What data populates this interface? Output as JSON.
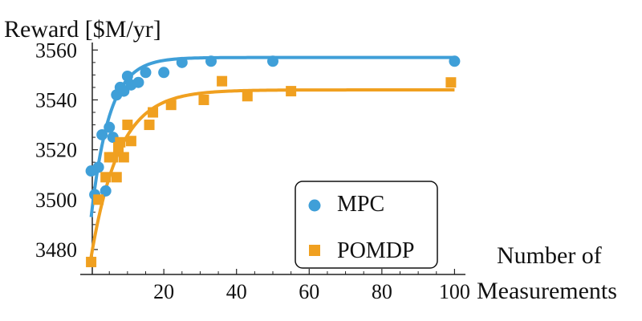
{
  "chart_data": {
    "type": "scatter",
    "ylabel": "Reward [$M/yr]",
    "xlabel_lines": [
      "Number of",
      "Measurements"
    ],
    "xlim": [
      -3,
      103
    ],
    "ylim": [
      3470,
      3563
    ],
    "x_ticks": [
      20,
      40,
      60,
      80,
      100
    ],
    "y_ticks": [
      3480,
      3500,
      3520,
      3540,
      3560
    ],
    "x_tick_labels": [
      "20",
      "40",
      "60",
      "80",
      "100"
    ],
    "y_tick_labels": [
      "3480",
      "3500",
      "3520",
      "3540",
      "3560"
    ],
    "grid": false,
    "legend_position": "bottom-right",
    "series": [
      {
        "name": "MPC",
        "marker": "circle",
        "color": "#3f9fd8",
        "points": [
          [
            0,
            3511.5
          ],
          [
            1,
            3502
          ],
          [
            2,
            3513
          ],
          [
            3,
            3526
          ],
          [
            4,
            3503.5
          ],
          [
            5,
            3529
          ],
          [
            6,
            3525
          ],
          [
            7,
            3542
          ],
          [
            8,
            3545
          ],
          [
            9,
            3543.5
          ],
          [
            10,
            3549.5
          ],
          [
            11,
            3546
          ],
          [
            13,
            3547
          ],
          [
            15,
            3551
          ],
          [
            20,
            3551
          ],
          [
            25,
            3555
          ],
          [
            33,
            3555.5
          ],
          [
            50,
            3555.5
          ],
          [
            100,
            3555.5
          ]
        ],
        "fit": {
          "asymptote": 3557,
          "start": 3493,
          "rate": 0.2
        }
      },
      {
        "name": "POMDP",
        "marker": "square",
        "color": "#f0a020",
        "points": [
          [
            0,
            3475
          ],
          [
            2,
            3500
          ],
          [
            4,
            3509
          ],
          [
            5,
            3517
          ],
          [
            6,
            3517
          ],
          [
            7,
            3509
          ],
          [
            7.5,
            3521
          ],
          [
            8,
            3523
          ],
          [
            9,
            3517
          ],
          [
            10,
            3530
          ],
          [
            11,
            3523.5
          ],
          [
            16,
            3530
          ],
          [
            17,
            3535
          ],
          [
            22,
            3538
          ],
          [
            31,
            3540
          ],
          [
            36,
            3547.5
          ],
          [
            43,
            3541.5
          ],
          [
            55,
            3543.5
          ],
          [
            99,
            3547
          ]
        ],
        "fit": {
          "asymptote": 3544,
          "start": 3477,
          "rate": 0.13
        }
      }
    ]
  }
}
